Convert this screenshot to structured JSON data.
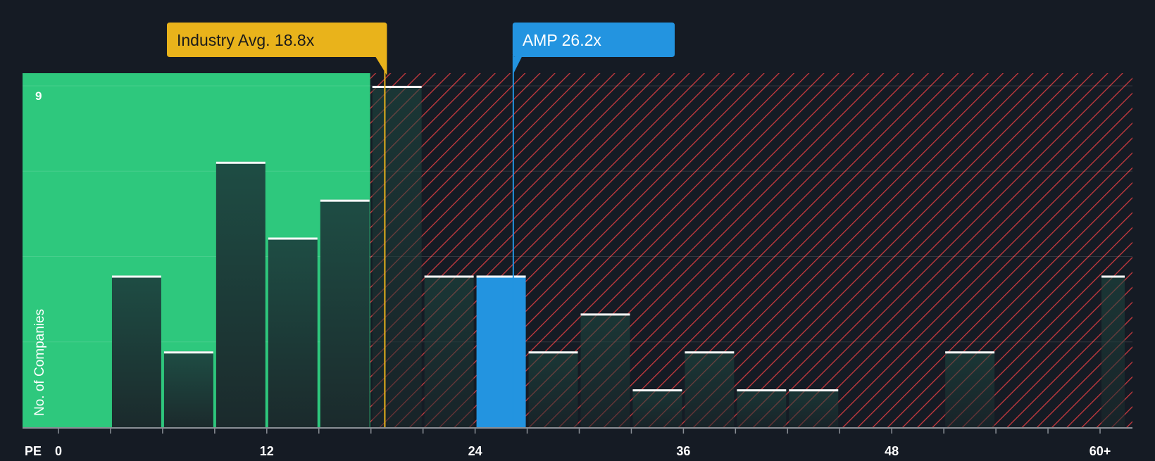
{
  "chart_data": {
    "type": "bar",
    "xlabel": "PE",
    "ylabel": "No. of Companies",
    "x_ticks": [
      0,
      12,
      24,
      36,
      48,
      "60+"
    ],
    "y_tick_labels": [
      {
        "value": 9,
        "label": "9"
      }
    ],
    "ylim": [
      0,
      9.3
    ],
    "bins": [
      {
        "x0": 0,
        "x1": 3,
        "count": 0
      },
      {
        "x0": 3,
        "x1": 6,
        "count": 4
      },
      {
        "x0": 6,
        "x1": 9,
        "count": 2
      },
      {
        "x0": 9,
        "x1": 12,
        "count": 7
      },
      {
        "x0": 12,
        "x1": 15,
        "count": 5
      },
      {
        "x0": 15,
        "x1": 18,
        "count": 6
      },
      {
        "x0": 18,
        "x1": 21,
        "count": 9
      },
      {
        "x0": 21,
        "x1": 24,
        "count": 4
      },
      {
        "x0": 24,
        "x1": 27,
        "count": 4,
        "highlight": true
      },
      {
        "x0": 27,
        "x1": 30,
        "count": 2
      },
      {
        "x0": 30,
        "x1": 33,
        "count": 3
      },
      {
        "x0": 33,
        "x1": 36,
        "count": 1
      },
      {
        "x0": 36,
        "x1": 39,
        "count": 2
      },
      {
        "x0": 39,
        "x1": 42,
        "count": 1
      },
      {
        "x0": 42,
        "x1": 45,
        "count": 1
      },
      {
        "x0": 45,
        "x1": 48,
        "count": 0
      },
      {
        "x0": 48,
        "x1": 51,
        "count": 0
      },
      {
        "x0": 51,
        "x1": 54,
        "count": 2
      },
      {
        "x0": 54,
        "x1": 57,
        "count": 0
      },
      {
        "x0": 57,
        "x1": 60,
        "count": 0
      },
      {
        "x0": 60,
        "x1": 61.5,
        "count": 4
      }
    ],
    "industry_avg": {
      "value": 18.8,
      "label": "Industry Avg. 18.8x",
      "color": "#e9b31b"
    },
    "company": {
      "value": 26.2,
      "label": "AMP 26.2x",
      "color": "#2394e0"
    },
    "colors": {
      "background": "#151b24",
      "undervalued_zone": "#2ec87d",
      "overvalued_hatch": "#c93a3f",
      "bar_fill": "#1e4d44",
      "bar_top": "#ffffff",
      "highlight_bar": "#2394e0"
    }
  }
}
